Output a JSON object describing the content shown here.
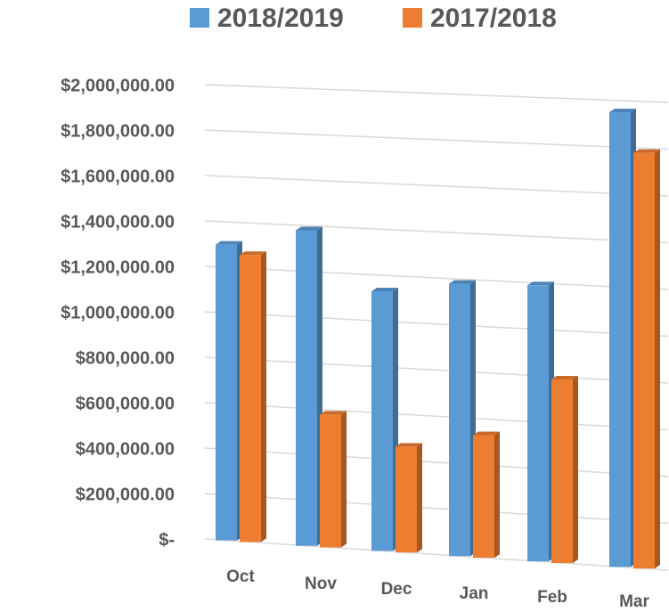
{
  "chart_data": {
    "type": "bar",
    "categories": [
      "Oct",
      "Nov",
      "Dec",
      "Jan",
      "Feb",
      "Mar"
    ],
    "series": [
      {
        "name": "2018/2019",
        "color": "#5b9bd5",
        "values": [
          1300000,
          1380000,
          1130000,
          1180000,
          1190000,
          1950000
        ]
      },
      {
        "name": "2017/2018",
        "color": "#ed7d31",
        "values": [
          1260000,
          580000,
          460000,
          530000,
          790000,
          1780000
        ]
      }
    ],
    "ylim": [
      0,
      2000000
    ],
    "yticks": [
      {
        "value": 0,
        "label": "$-"
      },
      {
        "value": 200000,
        "label": "$200,000.00"
      },
      {
        "value": 400000,
        "label": "$400,000.00"
      },
      {
        "value": 600000,
        "label": "$600,000.00"
      },
      {
        "value": 800000,
        "label": "$800,000.00"
      },
      {
        "value": 1000000,
        "label": "$1,000,000.00"
      },
      {
        "value": 1200000,
        "label": "$1,200,000.00"
      },
      {
        "value": 1400000,
        "label": "$1,400,000.00"
      },
      {
        "value": 1600000,
        "label": "$1,600,000.00"
      },
      {
        "value": 1800000,
        "label": "$1,800,000.00"
      },
      {
        "value": 2000000,
        "label": "$2,000,000.00"
      }
    ],
    "grid": true,
    "legend": "top"
  }
}
